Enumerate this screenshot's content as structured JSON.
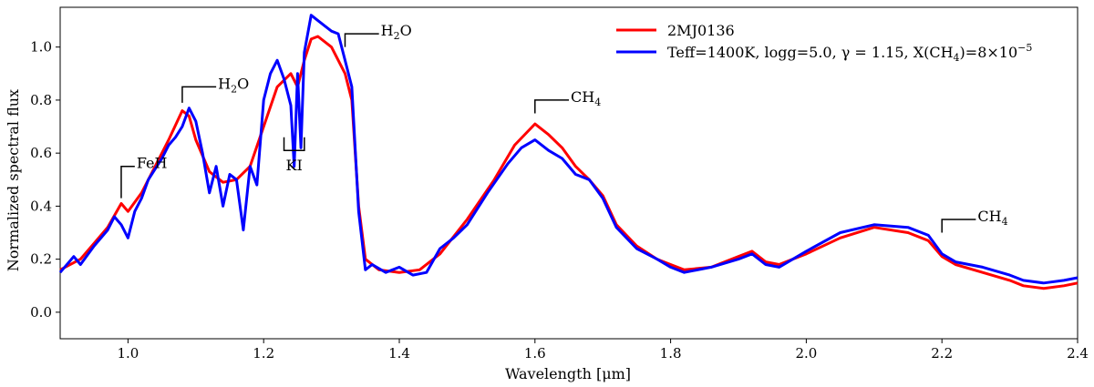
{
  "chart_data": {
    "type": "line",
    "xlabel": "Wavelength [μm]",
    "ylabel": "Normalized spectral flux",
    "xlim": [
      0.9,
      2.4
    ],
    "ylim": [
      -0.1,
      1.15
    ],
    "x_ticks": [
      "1.0",
      "1.2",
      "1.4",
      "1.6",
      "1.8",
      "2.0",
      "2.2",
      "2.4"
    ],
    "x_tick_values": [
      1.0,
      1.2,
      1.4,
      1.6,
      1.8,
      2.0,
      2.2,
      2.4
    ],
    "y_ticks": [
      "0.0",
      "0.2",
      "0.4",
      "0.6",
      "0.8",
      "1.0"
    ],
    "y_tick_values": [
      0.0,
      0.2,
      0.4,
      0.6,
      0.8,
      1.0
    ],
    "grid": false,
    "legend_position": "top-right",
    "series": [
      {
        "name": "2MJ0136",
        "color": "#ff0000",
        "points": [
          [
            0.9,
            0.16
          ],
          [
            0.93,
            0.2
          ],
          [
            0.95,
            0.26
          ],
          [
            0.97,
            0.32
          ],
          [
            0.99,
            0.41
          ],
          [
            1.0,
            0.38
          ],
          [
            1.02,
            0.45
          ],
          [
            1.04,
            0.55
          ],
          [
            1.06,
            0.65
          ],
          [
            1.08,
            0.76
          ],
          [
            1.09,
            0.74
          ],
          [
            1.1,
            0.65
          ],
          [
            1.12,
            0.53
          ],
          [
            1.14,
            0.49
          ],
          [
            1.16,
            0.5
          ],
          [
            1.18,
            0.55
          ],
          [
            1.2,
            0.7
          ],
          [
            1.22,
            0.85
          ],
          [
            1.24,
            0.9
          ],
          [
            1.25,
            0.85
          ],
          [
            1.26,
            0.95
          ],
          [
            1.27,
            1.03
          ],
          [
            1.28,
            1.04
          ],
          [
            1.3,
            1.0
          ],
          [
            1.32,
            0.9
          ],
          [
            1.33,
            0.8
          ],
          [
            1.34,
            0.4
          ],
          [
            1.35,
            0.2
          ],
          [
            1.37,
            0.16
          ],
          [
            1.4,
            0.15
          ],
          [
            1.43,
            0.16
          ],
          [
            1.46,
            0.22
          ],
          [
            1.5,
            0.35
          ],
          [
            1.54,
            0.5
          ],
          [
            1.57,
            0.63
          ],
          [
            1.6,
            0.71
          ],
          [
            1.62,
            0.67
          ],
          [
            1.64,
            0.62
          ],
          [
            1.66,
            0.55
          ],
          [
            1.68,
            0.5
          ],
          [
            1.7,
            0.44
          ],
          [
            1.72,
            0.33
          ],
          [
            1.75,
            0.25
          ],
          [
            1.78,
            0.2
          ],
          [
            1.8,
            0.18
          ],
          [
            1.82,
            0.16
          ],
          [
            1.86,
            0.17
          ],
          [
            1.9,
            0.21
          ],
          [
            1.92,
            0.23
          ],
          [
            1.94,
            0.19
          ],
          [
            1.96,
            0.18
          ],
          [
            2.0,
            0.22
          ],
          [
            2.05,
            0.28
          ],
          [
            2.1,
            0.32
          ],
          [
            2.15,
            0.3
          ],
          [
            2.18,
            0.27
          ],
          [
            2.2,
            0.21
          ],
          [
            2.22,
            0.18
          ],
          [
            2.26,
            0.15
          ],
          [
            2.3,
            0.12
          ],
          [
            2.32,
            0.1
          ],
          [
            2.35,
            0.09
          ],
          [
            2.38,
            0.1
          ],
          [
            2.4,
            0.11
          ]
        ]
      },
      {
        "name": "Teff=1400K, logg=5.0, γ = 1.15, X(CH4)=8×10−5",
        "color": "#0000ff",
        "points": [
          [
            0.9,
            0.15
          ],
          [
            0.92,
            0.21
          ],
          [
            0.93,
            0.18
          ],
          [
            0.95,
            0.25
          ],
          [
            0.97,
            0.31
          ],
          [
            0.98,
            0.36
          ],
          [
            0.99,
            0.33
          ],
          [
            1.0,
            0.28
          ],
          [
            1.01,
            0.38
          ],
          [
            1.02,
            0.43
          ],
          [
            1.03,
            0.5
          ],
          [
            1.05,
            0.58
          ],
          [
            1.06,
            0.63
          ],
          [
            1.07,
            0.66
          ],
          [
            1.08,
            0.7
          ],
          [
            1.09,
            0.77
          ],
          [
            1.1,
            0.72
          ],
          [
            1.11,
            0.6
          ],
          [
            1.12,
            0.45
          ],
          [
            1.13,
            0.55
          ],
          [
            1.14,
            0.4
          ],
          [
            1.15,
            0.52
          ],
          [
            1.16,
            0.5
          ],
          [
            1.17,
            0.31
          ],
          [
            1.18,
            0.55
          ],
          [
            1.19,
            0.48
          ],
          [
            1.2,
            0.8
          ],
          [
            1.21,
            0.9
          ],
          [
            1.22,
            0.95
          ],
          [
            1.23,
            0.88
          ],
          [
            1.24,
            0.78
          ],
          [
            1.245,
            0.55
          ],
          [
            1.25,
            0.9
          ],
          [
            1.255,
            0.62
          ],
          [
            1.26,
            0.98
          ],
          [
            1.27,
            1.12
          ],
          [
            1.28,
            1.1
          ],
          [
            1.29,
            1.08
          ],
          [
            1.3,
            1.06
          ],
          [
            1.31,
            1.05
          ],
          [
            1.32,
            0.95
          ],
          [
            1.33,
            0.85
          ],
          [
            1.34,
            0.38
          ],
          [
            1.35,
            0.16
          ],
          [
            1.36,
            0.18
          ],
          [
            1.38,
            0.15
          ],
          [
            1.4,
            0.17
          ],
          [
            1.42,
            0.14
          ],
          [
            1.44,
            0.15
          ],
          [
            1.46,
            0.24
          ],
          [
            1.48,
            0.28
          ],
          [
            1.5,
            0.33
          ],
          [
            1.53,
            0.45
          ],
          [
            1.56,
            0.56
          ],
          [
            1.58,
            0.62
          ],
          [
            1.6,
            0.65
          ],
          [
            1.62,
            0.61
          ],
          [
            1.64,
            0.58
          ],
          [
            1.66,
            0.52
          ],
          [
            1.68,
            0.5
          ],
          [
            1.7,
            0.43
          ],
          [
            1.72,
            0.32
          ],
          [
            1.75,
            0.24
          ],
          [
            1.78,
            0.2
          ],
          [
            1.8,
            0.17
          ],
          [
            1.82,
            0.15
          ],
          [
            1.86,
            0.17
          ],
          [
            1.9,
            0.2
          ],
          [
            1.92,
            0.22
          ],
          [
            1.94,
            0.18
          ],
          [
            1.96,
            0.17
          ],
          [
            2.0,
            0.23
          ],
          [
            2.05,
            0.3
          ],
          [
            2.1,
            0.33
          ],
          [
            2.15,
            0.32
          ],
          [
            2.18,
            0.29
          ],
          [
            2.2,
            0.22
          ],
          [
            2.22,
            0.19
          ],
          [
            2.26,
            0.17
          ],
          [
            2.3,
            0.14
          ],
          [
            2.32,
            0.12
          ],
          [
            2.35,
            0.11
          ],
          [
            2.38,
            0.12
          ],
          [
            2.4,
            0.13
          ]
        ]
      }
    ],
    "annotations": [
      {
        "id": "feh",
        "x": 0.99,
        "y": 0.43,
        "y_end": 0.55,
        "x_end": 1.01,
        "main": "FeH",
        "sub": "",
        "type": "bracket-up"
      },
      {
        "id": "h2o-1",
        "x": 1.08,
        "y": 0.79,
        "y_end": 0.85,
        "x_end": 1.13,
        "main": "H",
        "sub": "2",
        "tail": "O",
        "type": "bracket-up"
      },
      {
        "id": "ki",
        "x": 1.23,
        "x_end": 1.26,
        "y": 0.66,
        "y_end": 0.61,
        "main": "KI",
        "sub": "",
        "type": "bracket-down"
      },
      {
        "id": "h2o-2",
        "x": 1.32,
        "y": 1.0,
        "y_end": 1.05,
        "x_end": 1.37,
        "main": "H",
        "sub": "2",
        "tail": "O",
        "type": "bracket-up"
      },
      {
        "id": "ch4-1",
        "x": 1.6,
        "y": 0.75,
        "y_end": 0.8,
        "x_end": 1.65,
        "main": "CH",
        "sub": "4",
        "type": "bracket-up"
      },
      {
        "id": "ch4-2",
        "x": 2.2,
        "y": 0.3,
        "y_end": 0.35,
        "x_end": 2.25,
        "main": "CH",
        "sub": "4",
        "type": "bracket-up"
      }
    ],
    "legend": [
      {
        "main": "2MJ0136",
        "color": "#ff0000"
      },
      {
        "main": "Teff=1400K, logg=5.0, γ = 1.15, X(CH",
        "sub": "4",
        "mid": ")=8×10",
        "sup": "−5",
        "color": "#0000ff"
      }
    ]
  }
}
